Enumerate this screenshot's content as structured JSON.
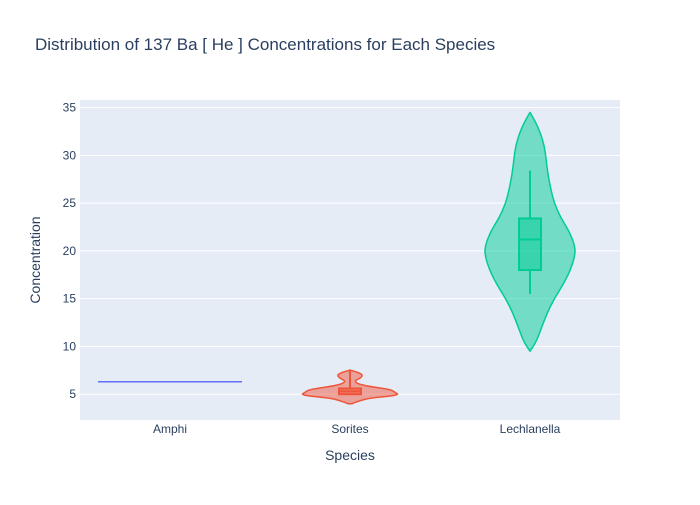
{
  "chart_data": {
    "type": "violin",
    "title": "Distribution of 137  Ba  [ He ]  Concentrations for Each Species",
    "xlabel": "Species",
    "ylabel": "Concentration",
    "categories": [
      "Amphi",
      "Sorites",
      "Lechlanella"
    ],
    "ylim": [
      2.3,
      35.8
    ],
    "yticks": [
      5,
      10,
      15,
      20,
      25,
      30,
      35
    ],
    "grid": true,
    "legend": "none",
    "series": [
      {
        "category": "Amphi",
        "color": "#636efa",
        "fill": "#636efa",
        "min": 6.3,
        "q1": 6.3,
        "median": 6.3,
        "q3": 6.3,
        "max": 6.3,
        "violin_min": 6.3,
        "violin_max": 6.3,
        "density": [
          [
            6.3,
            0.5
          ]
        ]
      },
      {
        "category": "Sorites",
        "color": "#ef553b",
        "fill": "#ef553b",
        "min": 4.9,
        "q1": 5.0,
        "median": 5.3,
        "q3": 5.6,
        "max": 7.6,
        "violin_min": 4.0,
        "violin_max": 7.5,
        "density": [
          [
            4.0,
            0.02
          ],
          [
            4.3,
            0.1
          ],
          [
            4.6,
            0.22
          ],
          [
            4.9,
            0.55
          ],
          [
            5.2,
            0.5
          ],
          [
            5.5,
            0.45
          ],
          [
            5.8,
            0.22
          ],
          [
            6.1,
            0.08
          ],
          [
            6.4,
            0.05
          ],
          [
            6.7,
            0.12
          ],
          [
            7.0,
            0.14
          ],
          [
            7.2,
            0.11
          ],
          [
            7.4,
            0.05
          ],
          [
            7.5,
            0.01
          ]
        ]
      },
      {
        "category": "Lechlanella",
        "color": "#00cc96",
        "fill": "#00cc96",
        "min": 15.5,
        "q1": 18.0,
        "median": 21.2,
        "q3": 23.4,
        "max": 28.4,
        "violin_min": 9.5,
        "violin_max": 34.5,
        "density": [
          [
            9.5,
            0.0
          ],
          [
            10.5,
            0.07
          ],
          [
            12,
            0.13
          ],
          [
            13.5,
            0.19
          ],
          [
            15,
            0.27
          ],
          [
            16.5,
            0.37
          ],
          [
            18,
            0.45
          ],
          [
            19.5,
            0.5
          ],
          [
            20.5,
            0.5
          ],
          [
            22,
            0.44
          ],
          [
            23.5,
            0.34
          ],
          [
            25,
            0.27
          ],
          [
            26.5,
            0.23
          ],
          [
            28,
            0.2
          ],
          [
            29.5,
            0.18
          ],
          [
            31,
            0.16
          ],
          [
            32.5,
            0.11
          ],
          [
            33.7,
            0.05
          ],
          [
            34.5,
            0.0
          ]
        ]
      }
    ]
  }
}
